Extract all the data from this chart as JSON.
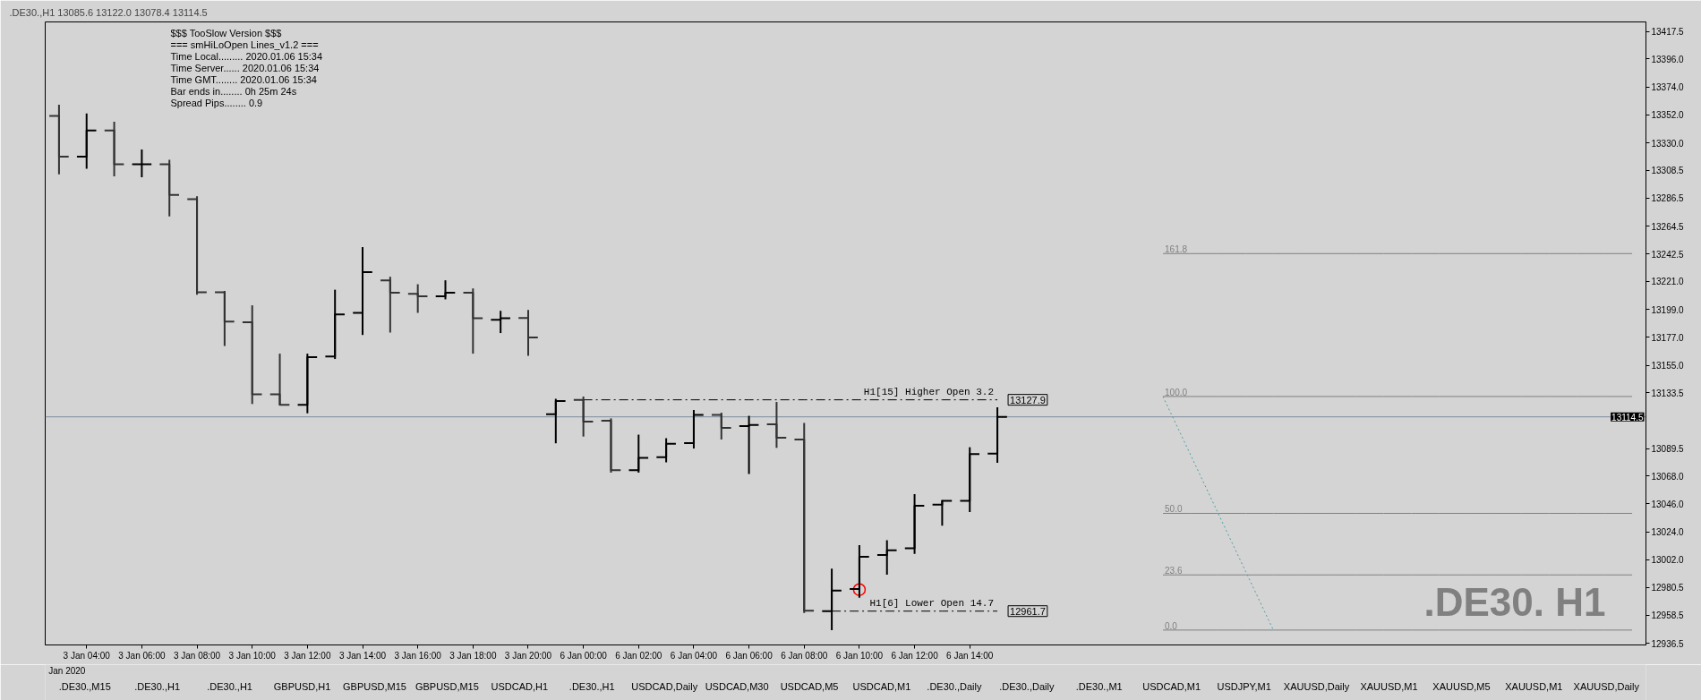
{
  "chart_data": {
    "type": "candlestick",
    "title": ".DE30.,H1 13085.6 13122.0 13078.4 13114.5",
    "categories": [
      null,
      "3 Jan 04:00",
      null,
      "3 Jan 06:00",
      null,
      "3 Jan 08:00",
      null,
      "3 Jan 10:00",
      null,
      "3 Jan 12:00",
      null,
      "3 Jan 14:00",
      null,
      "3 Jan 16:00",
      null,
      "3 Jan 18:00",
      null,
      "3 Jan 20:00",
      null,
      "6 Jan 00:00",
      null,
      "6 Jan 02:00",
      null,
      "6 Jan 04:00",
      null,
      "6 Jan 06:00",
      null,
      "6 Jan 08:00",
      null,
      "6 Jan 10:00",
      null,
      "6 Jan 12:00",
      null,
      "6 Jan 14:00",
      null,
      null,
      null,
      null,
      null,
      null,
      null,
      null,
      null,
      null,
      null,
      null,
      null,
      null,
      null,
      null,
      null,
      null,
      null,
      null,
      null,
      null,
      null,
      null
    ],
    "ohlc": [
      [
        13351.1,
        13360.0,
        13305.3,
        13319.1
      ],
      [
        13319.1,
        13353.2,
        13309.6,
        13339.7
      ],
      [
        13339.7,
        13346.6,
        13303.7,
        13313.2
      ],
      [
        13313.2,
        13324.8,
        13303.0,
        13313.2
      ],
      [
        13313.2,
        13316.7,
        13272.1,
        13289.0
      ],
      [
        13285.7,
        13288.0,
        13210.5,
        13212.4
      ],
      [
        13212.4,
        13213.6,
        13170.2,
        13189.4
      ],
      [
        13188.9,
        13202.2,
        13124.6,
        13132.2
      ],
      [
        13132.2,
        13164.2,
        13123.5,
        13123.9
      ],
      [
        13123.9,
        13164.2,
        13117.3,
        13161.4
      ],
      [
        13161.9,
        13214.5,
        13160.0,
        13195.1
      ],
      [
        13196.3,
        13248.0,
        13178.9,
        13228.3
      ],
      [
        13221.9,
        13224.7,
        13180.8,
        13212.1
      ],
      [
        13211.2,
        13218.8,
        13196.3,
        13209.3
      ],
      [
        13209.3,
        13221.9,
        13206.9,
        13212.1
      ],
      [
        13212.1,
        13215.5,
        13164.2,
        13192.0
      ],
      [
        13190.8,
        13197.9,
        13180.4,
        13192.0
      ],
      [
        13192.3,
        13198.6,
        13162.5,
        13177.0
      ],
      [
        13116.6,
        13128.7,
        13093.7,
        13127.0
      ],
      [
        13127.9,
        13130.5,
        13099.0,
        13110.7
      ],
      [
        13111.5,
        13113.3,
        13070.6,
        13072.6
      ],
      [
        13072.6,
        13100.5,
        13070.6,
        13082.3
      ],
      [
        13082.8,
        13097.7,
        13078.7,
        13093.4
      ],
      [
        13093.9,
        13119.9,
        13089.6,
        13116.1
      ],
      [
        13116.1,
        13117.8,
        13096.7,
        13105.9
      ],
      [
        13107.2,
        13115.3,
        13069.5,
        13108.2
      ],
      [
        13108.7,
        13126.2,
        13090.1,
        13098.0
      ],
      [
        13096.7,
        13109.7,
        12960.3,
        12962.1
      ],
      [
        12961.7,
        12995.1,
        12946.8,
        12977.8
      ],
      [
        12979.1,
        13013.6,
        12972.2,
        13004.5
      ],
      [
        13005.8,
        13017.5,
        12990.3,
        13009.6
      ],
      [
        13011.1,
        13053.8,
        13006.8,
        13044.6
      ],
      [
        13045.4,
        13049.0,
        13028.9,
        13048.5
      ],
      [
        13048.5,
        13090.6,
        13039.6,
        13085.3
      ],
      [
        13085.6,
        13122.0,
        13078.4,
        13114.5
      ],
      null,
      null,
      null,
      null,
      null,
      null,
      null,
      null,
      null,
      null,
      null,
      null,
      null,
      null,
      null,
      null,
      null,
      null,
      null,
      null,
      null,
      null,
      null
    ],
    "colors": [
      "#333333",
      "#000000",
      "#333333",
      "#000000",
      "#333333",
      "#333333",
      "#333333",
      "#333333",
      "#333333",
      "#000000",
      "#000000",
      "#000000",
      "#333333",
      "#333333",
      "#000000",
      "#333333",
      "#000000",
      "#333333",
      "#000000",
      "#333333",
      "#333333",
      "#000000",
      "#000000",
      "#000000",
      "#333333",
      "#000000",
      "#333333",
      "#333333",
      "#000000",
      "#000000",
      "#000000",
      "#000000",
      "#000000",
      "#000000",
      "#000000",
      null,
      null,
      null,
      null,
      null,
      null,
      null,
      null,
      null,
      null,
      null,
      null,
      null,
      null,
      null,
      null,
      null,
      null,
      null,
      null,
      null,
      null,
      null
    ],
    "series": [
      {
        "type": "line",
        "name": "H1[15] Higher Open 3.2",
        "color": "#000000",
        "line_style": "dashed",
        "values": [
          null,
          null,
          null,
          null,
          null,
          null,
          null,
          null,
          null,
          null,
          null,
          null,
          null,
          null,
          null,
          null,
          null,
          null,
          null,
          13127.9,
          13127.9,
          13127.9,
          13127.9,
          13127.9,
          13127.9,
          13127.9,
          13127.9,
          13127.9,
          13127.9,
          13127.9,
          13127.9,
          13127.9,
          13127.9,
          13127.9,
          13127.9,
          null,
          null,
          null,
          null,
          null,
          null,
          null,
          null,
          null,
          null,
          null,
          null,
          null,
          null,
          null,
          null,
          null,
          null,
          null,
          null,
          null,
          null,
          null
        ],
        "value_labels": [
          null,
          null,
          null,
          null,
          null,
          null,
          null,
          null,
          null,
          null,
          null,
          null,
          null,
          null,
          null,
          null,
          null,
          null,
          null,
          null,
          null,
          null,
          null,
          null,
          null,
          null,
          null,
          null,
          null,
          null,
          null,
          null,
          null,
          null,
          "13127.9",
          null,
          null,
          null,
          null,
          null,
          null,
          null,
          null,
          null,
          null,
          null,
          null,
          null,
          null,
          null,
          null,
          null,
          null,
          null,
          null,
          null,
          null,
          null
        ]
      },
      {
        "type": "line",
        "name": "H1[6] Lower Open 14.7",
        "color": "#000000",
        "line_style": "dashed",
        "values": [
          null,
          null,
          null,
          null,
          null,
          null,
          null,
          null,
          null,
          null,
          null,
          null,
          null,
          null,
          null,
          null,
          null,
          null,
          null,
          null,
          null,
          null,
          null,
          null,
          null,
          null,
          null,
          null,
          12961.7,
          12961.7,
          12961.7,
          12961.7,
          12961.7,
          12961.7,
          12961.7,
          null,
          null,
          null,
          null,
          null,
          null,
          null,
          null,
          null,
          null,
          null,
          null,
          null,
          null,
          null,
          null,
          null,
          null,
          null,
          null,
          null,
          null,
          null
        ],
        "value_labels": [
          null,
          null,
          null,
          null,
          null,
          null,
          null,
          null,
          null,
          null,
          null,
          null,
          null,
          null,
          null,
          null,
          null,
          null,
          null,
          null,
          null,
          null,
          null,
          null,
          null,
          null,
          null,
          null,
          null,
          null,
          null,
          null,
          null,
          null,
          "12961.7",
          null,
          null,
          null,
          null,
          null,
          null,
          null,
          null,
          null,
          null,
          null,
          null,
          null,
          null,
          null,
          null,
          null,
          null,
          null,
          null,
          null,
          null,
          null
        ]
      },
      {
        "type": "line",
        "name": "161.8",
        "color": "#808080",
        "line_style": "solid",
        "values": [
          null,
          null,
          null,
          null,
          null,
          null,
          null,
          null,
          null,
          null,
          null,
          null,
          null,
          null,
          null,
          null,
          null,
          null,
          null,
          null,
          null,
          null,
          null,
          null,
          null,
          null,
          null,
          null,
          null,
          null,
          null,
          null,
          null,
          null,
          null,
          null,
          null,
          null,
          null,
          null,
          13242.9,
          13242.9,
          13242.9,
          13242.9,
          13242.9,
          13242.9,
          13242.9,
          13242.9,
          13242.9,
          13242.9,
          13242.9,
          13242.9,
          13242.9,
          13242.9,
          13242.9,
          13242.9,
          13242.9,
          13242.9
        ]
      },
      {
        "type": "line",
        "name": "100.0",
        "color": "#808080",
        "line_style": "solid",
        "values": [
          null,
          null,
          null,
          null,
          null,
          null,
          null,
          null,
          null,
          null,
          null,
          null,
          null,
          null,
          null,
          null,
          null,
          null,
          null,
          null,
          null,
          null,
          null,
          null,
          null,
          null,
          null,
          null,
          null,
          null,
          null,
          null,
          null,
          null,
          null,
          null,
          null,
          null,
          null,
          null,
          13130.5,
          13130.5,
          13130.5,
          13130.5,
          13130.5,
          13130.5,
          13130.5,
          13130.5,
          13130.5,
          13130.5,
          13130.5,
          13130.5,
          13130.5,
          13130.5,
          13130.5,
          13130.5,
          13130.5,
          13130.5
        ]
      },
      {
        "type": "line",
        "name": "50.0",
        "color": "#808080",
        "line_style": "solid",
        "values": [
          null,
          null,
          null,
          null,
          null,
          null,
          null,
          null,
          null,
          null,
          null,
          null,
          null,
          null,
          null,
          null,
          null,
          null,
          null,
          null,
          null,
          null,
          null,
          null,
          null,
          null,
          null,
          null,
          null,
          null,
          null,
          null,
          null,
          null,
          null,
          null,
          null,
          null,
          null,
          null,
          13038.6,
          13038.6,
          13038.6,
          13038.6,
          13038.6,
          13038.6,
          13038.6,
          13038.6,
          13038.6,
          13038.6,
          13038.6,
          13038.6,
          13038.6,
          13038.6,
          13038.6,
          13038.6,
          13038.6,
          13038.6
        ]
      },
      {
        "type": "line",
        "name": "23.6",
        "color": "#808080",
        "line_style": "solid",
        "values": [
          null,
          null,
          null,
          null,
          null,
          null,
          null,
          null,
          null,
          null,
          null,
          null,
          null,
          null,
          null,
          null,
          null,
          null,
          null,
          null,
          null,
          null,
          null,
          null,
          null,
          null,
          null,
          null,
          null,
          null,
          null,
          null,
          null,
          null,
          null,
          null,
          null,
          null,
          null,
          null,
          12990.2,
          12990.2,
          12990.2,
          12990.2,
          12990.2,
          12990.2,
          12990.2,
          12990.2,
          12990.2,
          12990.2,
          12990.2,
          12990.2,
          12990.2,
          12990.2,
          12990.2,
          12990.2,
          12990.2,
          12990.2
        ]
      },
      {
        "type": "line",
        "name": "0.0",
        "color": "#808080",
        "line_style": "solid",
        "values": [
          null,
          null,
          null,
          null,
          null,
          null,
          null,
          null,
          null,
          null,
          null,
          null,
          null,
          null,
          null,
          null,
          null,
          null,
          null,
          null,
          null,
          null,
          null,
          null,
          null,
          null,
          null,
          null,
          null,
          null,
          null,
          null,
          null,
          null,
          null,
          null,
          null,
          null,
          null,
          null,
          12946.8,
          12946.8,
          12946.8,
          12946.8,
          12946.8,
          12946.8,
          12946.8,
          12946.8,
          12946.8,
          12946.8,
          12946.8,
          12946.8,
          12946.8,
          12946.8,
          12946.8,
          12946.8,
          12946.8,
          12946.8
        ]
      },
      {
        "type": "line",
        "color": "#4f9ea0",
        "line_style": "dotted",
        "values": [
          null,
          null,
          null,
          null,
          null,
          null,
          null,
          null,
          null,
          null,
          null,
          null,
          null,
          null,
          null,
          null,
          null,
          null,
          null,
          null,
          null,
          null,
          null,
          null,
          null,
          null,
          null,
          null,
          null,
          null,
          null,
          null,
          null,
          null,
          null,
          null,
          null,
          null,
          null,
          null,
          13130.5,
          13084.6,
          13038.6,
          12992.7,
          12946.8,
          null,
          null,
          null,
          null,
          null,
          null,
          null,
          null,
          null,
          null,
          null,
          null,
          null
        ]
      },
      {
        "type": "scatter",
        "color": "#ff0000",
        "marker": "circle",
        "values": [
          null,
          null,
          null,
          null,
          null,
          null,
          null,
          null,
          null,
          null,
          null,
          null,
          null,
          null,
          null,
          null,
          null,
          null,
          null,
          null,
          null,
          null,
          null,
          null,
          null,
          null,
          null,
          null,
          null,
          12978.6,
          null,
          null,
          null,
          null,
          null,
          null,
          null,
          null,
          null,
          null,
          null,
          null,
          null,
          null,
          null,
          null,
          null,
          null,
          null,
          null,
          null,
          null,
          null,
          null,
          null,
          null,
          null,
          null
        ]
      }
    ],
    "ref_lines": [
      {
        "axis": "y",
        "value": 13114.5,
        "label": "13114.5",
        "color": "#7d8ea0",
        "line_style": "solid"
      }
    ],
    "ylim": [
      12935.1,
      13425.1
    ],
    "yticks": [
      13417.5,
      {
        "value": 13396.0,
        "label": "13396.0"
      },
      {
        "value": 13374.0,
        "label": "13374.0"
      },
      {
        "value": 13352.0,
        "label": "13352.0"
      },
      {
        "value": 13330.0,
        "label": "13330.0"
      },
      13308.5,
      13286.5,
      13264.5,
      13242.5,
      {
        "value": 13221.0,
        "label": "13221.0"
      },
      {
        "value": 13199.0,
        "label": "13199.0"
      },
      {
        "value": 13177.0,
        "label": "13177.0"
      },
      {
        "value": 13155.0,
        "label": "13155.0"
      },
      13133.5,
      13089.5,
      {
        "value": 13068.0,
        "label": "13068.0"
      },
      {
        "value": 13046.0,
        "label": "13046.0"
      },
      {
        "value": 13024.0,
        "label": "13024.0"
      },
      {
        "value": 13002.0,
        "label": "13002.0"
      },
      12980.5,
      12958.5,
      12936.5
    ],
    "annotations": [
      "$$$ TooSlow Version $$$",
      "=== smHiLoOpen Lines_v1.2 ===",
      "Time Local......... 2020.01.06 15:34",
      "Time Server...... 2020.01.06 15:34",
      "Time GMT........ 2020.01.06 15:34",
      "Bar ends in........ 0h 25m 24s",
      "Spread Pips........ 0.9",
      ".DE30. H1",
      "Jan 2020",
      ".DE30.,M15",
      ".DE30.,H1",
      ".DE30.,H1",
      "GBPUSD,H1",
      "GBPUSD,M15",
      "GBPUSD,M15",
      "USDCAD,H1",
      ".DE30.,H1",
      "USDCAD,Daily",
      "USDCAD,M30",
      "USDCAD,M5",
      "USDCAD,M1",
      ".DE30.,Daily",
      ".DE30.,Daily",
      ".DE30.,M1",
      "USDCAD,M1",
      "USDJPY,M1",
      "XAUUSD,Daily",
      "XAUUSD,M1",
      "XAUUSD,M5",
      "XAUUSD,M1",
      "XAUUSD,Daily"
    ]
  }
}
